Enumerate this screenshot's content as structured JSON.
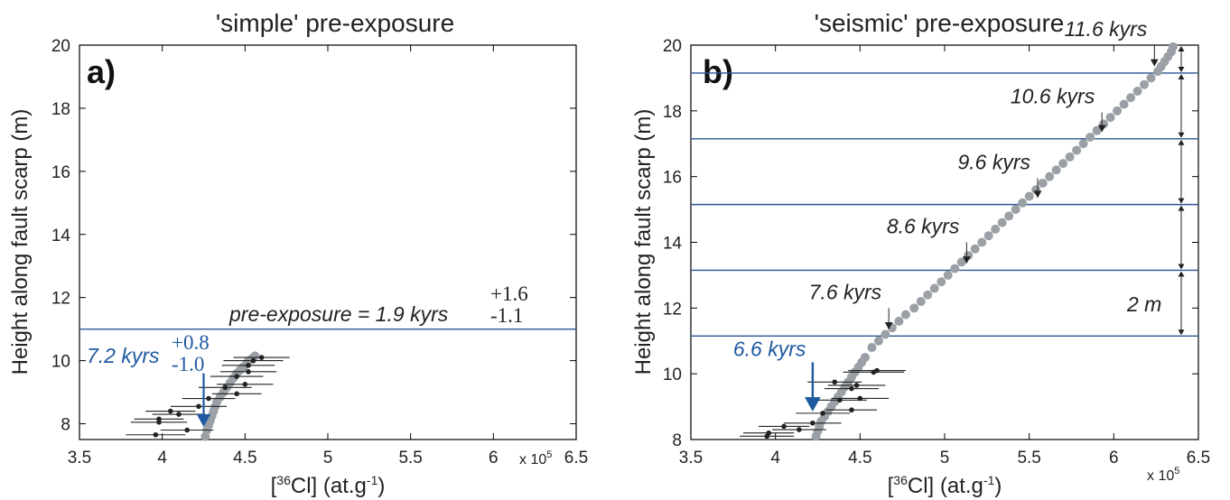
{
  "chart_data": [
    {
      "type": "scatter",
      "panel_label": "a)",
      "title": "'simple' pre-exposure",
      "title_italic": "simple",
      "xlabel": "[36Cl] (at.g-1)",
      "xlabel_parts": {
        "pre": "[",
        "sup": "36",
        "mid": "Cl] (at.g",
        "sup2": "-1",
        "post": ")"
      },
      "ylabel": "Height along fault scarp (m)",
      "x_multiplier": "x 10",
      "x_multiplier_exp": "5",
      "xlim": [
        3.5,
        6.5
      ],
      "ylim": [
        7.5,
        20
      ],
      "xticks": [
        3.5,
        4,
        4.5,
        5,
        5.5,
        6,
        6.5
      ],
      "yticks": [
        8,
        10,
        12,
        14,
        16,
        18,
        20
      ],
      "hlines": [
        11.0
      ],
      "annotations": {
        "pre_exposure_text": "pre-exposure = 1.9 kyrs",
        "pre_exposure_plus": "+1.6",
        "pre_exposure_minus": "-1.1",
        "age_text": "7.2 kyrs",
        "age_plus": "+0.8",
        "age_minus": "-1.0",
        "age_arrow_x": 4.25,
        "age_arrow_from_y": 9.6,
        "age_arrow_to_y": 7.9
      },
      "model_curve": {
        "x": [
          4.26,
          4.27,
          4.28,
          4.29,
          4.3,
          4.31,
          4.32,
          4.33,
          4.35,
          4.37,
          4.39,
          4.41,
          4.43,
          4.45,
          4.47,
          4.49,
          4.51,
          4.52,
          4.54,
          4.55,
          4.56
        ],
        "y": [
          7.6,
          7.8,
          7.95,
          8.1,
          8.25,
          8.4,
          8.55,
          8.7,
          8.85,
          9.0,
          9.15,
          9.3,
          9.45,
          9.6,
          9.7,
          9.8,
          9.9,
          10.0,
          10.05,
          10.1,
          10.15
        ]
      },
      "samples": [
        {
          "x": 3.96,
          "y": 7.65,
          "err": 0.18
        },
        {
          "x": 4.15,
          "y": 7.8,
          "err": 0.16
        },
        {
          "x": 3.98,
          "y": 8.05,
          "err": 0.17
        },
        {
          "x": 3.98,
          "y": 8.15,
          "err": 0.15
        },
        {
          "x": 4.1,
          "y": 8.3,
          "err": 0.16
        },
        {
          "x": 4.05,
          "y": 8.4,
          "err": 0.15
        },
        {
          "x": 4.22,
          "y": 8.55,
          "err": 0.17
        },
        {
          "x": 4.28,
          "y": 8.8,
          "err": 0.16
        },
        {
          "x": 4.45,
          "y": 8.95,
          "err": 0.15
        },
        {
          "x": 4.38,
          "y": 9.15,
          "err": 0.16
        },
        {
          "x": 4.5,
          "y": 9.25,
          "err": 0.17
        },
        {
          "x": 4.45,
          "y": 9.5,
          "err": 0.16
        },
        {
          "x": 4.52,
          "y": 9.65,
          "err": 0.17
        },
        {
          "x": 4.52,
          "y": 9.85,
          "err": 0.16
        },
        {
          "x": 4.55,
          "y": 10.0,
          "err": 0.18
        },
        {
          "x": 4.6,
          "y": 10.1,
          "err": 0.17
        }
      ]
    },
    {
      "type": "scatter",
      "panel_label": "b)",
      "title": "'seismic' pre-exposure",
      "title_italic": "seismic",
      "xlabel": "[36Cl] (at.g-1)",
      "xlabel_parts": {
        "pre": "[",
        "sup": "36",
        "mid": "Cl] (at.g",
        "sup2": "-1",
        "post": ")"
      },
      "ylabel": "Height along fault scarp (m)",
      "x_multiplier": "x 10",
      "x_multiplier_exp": "5",
      "xlim": [
        3.5,
        6.5
      ],
      "ylim": [
        8,
        20
      ],
      "xticks": [
        3.5,
        4,
        4.5,
        5,
        5.5,
        6,
        6.5
      ],
      "yticks": [
        8,
        10,
        12,
        14,
        16,
        18,
        20
      ],
      "hlines": [
        11.15,
        13.15,
        15.15,
        17.15,
        19.15
      ],
      "interval_label": "2 m",
      "events": [
        {
          "label": "6.6 kyrs",
          "x": 4.22,
          "arrow_from_y": 10.35,
          "arrow_to_y": 8.85,
          "blue": true
        },
        {
          "label": "7.6 kyrs",
          "x": 4.67,
          "arrow_from_y": 12.0,
          "arrow_to_y": 11.35,
          "blue": false
        },
        {
          "label": "8.6 kyrs",
          "x": 5.13,
          "arrow_from_y": 14.0,
          "arrow_to_y": 13.35,
          "blue": false
        },
        {
          "label": "9.6 kyrs",
          "x": 5.55,
          "arrow_from_y": 15.95,
          "arrow_to_y": 15.35,
          "blue": false
        },
        {
          "label": "10.6 kyrs",
          "x": 5.93,
          "arrow_from_y": 17.95,
          "arrow_to_y": 17.35,
          "blue": false
        },
        {
          "label": "11.6 kyrs",
          "x": 6.24,
          "arrow_from_y": 20.0,
          "arrow_to_y": 19.35,
          "blue": false
        }
      ],
      "model_curve": {
        "x": [
          4.24,
          4.25,
          4.26,
          4.27,
          4.29,
          4.31,
          4.33,
          4.35,
          4.37,
          4.39,
          4.41,
          4.43,
          4.45,
          4.47,
          4.49,
          4.51,
          4.53,
          4.57,
          4.61,
          4.65,
          4.69,
          4.73,
          4.77,
          4.82,
          4.86,
          4.9,
          4.94,
          4.98,
          5.02,
          5.06,
          5.1,
          5.14,
          5.18,
          5.22,
          5.26,
          5.3,
          5.34,
          5.38,
          5.42,
          5.46,
          5.5,
          5.54,
          5.58,
          5.62,
          5.66,
          5.7,
          5.74,
          5.78,
          5.82,
          5.86,
          5.9,
          5.94,
          5.98,
          6.02,
          6.06,
          6.1,
          6.14,
          6.18,
          6.22,
          6.26,
          6.28,
          6.3,
          6.32,
          6.34,
          6.35
        ],
        "y": [
          8.1,
          8.25,
          8.4,
          8.55,
          8.7,
          8.85,
          9.0,
          9.15,
          9.3,
          9.45,
          9.6,
          9.75,
          9.9,
          10.05,
          10.2,
          10.35,
          10.5,
          10.8,
          11.0,
          11.2,
          11.4,
          11.6,
          11.8,
          12.0,
          12.2,
          12.4,
          12.6,
          12.8,
          13.0,
          13.2,
          13.4,
          13.6,
          13.8,
          14.0,
          14.2,
          14.4,
          14.6,
          14.8,
          15.0,
          15.2,
          15.4,
          15.6,
          15.8,
          16.0,
          16.2,
          16.4,
          16.6,
          16.8,
          17.0,
          17.2,
          17.4,
          17.6,
          17.8,
          18.0,
          18.2,
          18.4,
          18.6,
          18.8,
          19.0,
          19.2,
          19.35,
          19.5,
          19.65,
          19.8,
          19.95
        ]
      },
      "samples": [
        {
          "x": 3.95,
          "y": 8.1,
          "err": 0.16
        },
        {
          "x": 3.96,
          "y": 8.2,
          "err": 0.15
        },
        {
          "x": 4.14,
          "y": 8.3,
          "err": 0.16
        },
        {
          "x": 4.05,
          "y": 8.4,
          "err": 0.15
        },
        {
          "x": 4.22,
          "y": 8.5,
          "err": 0.17
        },
        {
          "x": 4.28,
          "y": 8.8,
          "err": 0.16
        },
        {
          "x": 4.45,
          "y": 8.9,
          "err": 0.15
        },
        {
          "x": 4.38,
          "y": 9.2,
          "err": 0.16
        },
        {
          "x": 4.5,
          "y": 9.25,
          "err": 0.17
        },
        {
          "x": 4.45,
          "y": 9.55,
          "err": 0.16
        },
        {
          "x": 4.48,
          "y": 9.65,
          "err": 0.17
        },
        {
          "x": 4.35,
          "y": 9.75,
          "err": 0.16
        },
        {
          "x": 4.58,
          "y": 10.05,
          "err": 0.18
        },
        {
          "x": 4.6,
          "y": 10.1,
          "err": 0.17
        }
      ]
    }
  ]
}
